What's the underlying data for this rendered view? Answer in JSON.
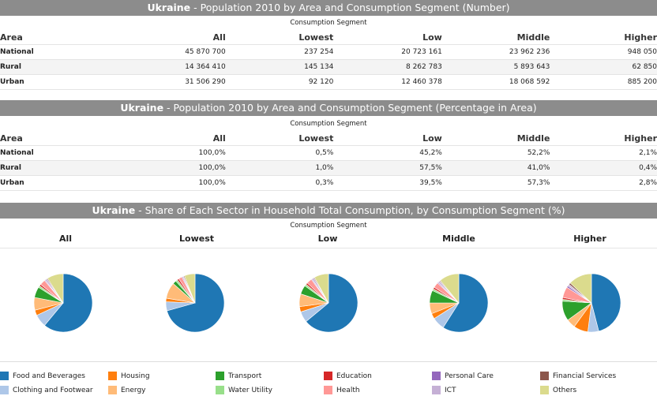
{
  "table1": {
    "country": "Ukraine",
    "title_rest": " - Population 2010 by Area and Consumption Segment (Number)",
    "segment_label": "Consumption Segment",
    "headers": [
      "Area",
      "All",
      "Lowest",
      "Low",
      "Middle",
      "Higher"
    ],
    "rows": [
      [
        "National",
        "45 870 700",
        "237 254",
        "20 723 161",
        "23 962 236",
        "948 050"
      ],
      [
        "Rural",
        "14 364 410",
        "145 134",
        "8 262 783",
        "5 893 643",
        "62 850"
      ],
      [
        "Urban",
        "31 506 290",
        "92 120",
        "12 460 378",
        "18 068 592",
        "885 200"
      ]
    ]
  },
  "table2": {
    "country": "Ukraine",
    "title_rest": " - Population 2010 by Area and Consumption Segment (Percentage in Area)",
    "segment_label": "Consumption Segment",
    "headers": [
      "Area",
      "All",
      "Lowest",
      "Low",
      "Middle",
      "Higher"
    ],
    "rows": [
      [
        "National",
        "100,0%",
        "0,5%",
        "45,2%",
        "52,2%",
        "2,1%"
      ],
      [
        "Rural",
        "100,0%",
        "1,0%",
        "57,5%",
        "41,0%",
        "0,4%"
      ],
      [
        "Urban",
        "100,0%",
        "0,3%",
        "39,5%",
        "57,3%",
        "2,8%"
      ]
    ]
  },
  "pies_section": {
    "country": "Ukraine",
    "title_rest": " - Share of Each Sector in Household Total Consumption, by Consumption Segment (%)",
    "segment_label": "Consumption Segment"
  },
  "chart_data": {
    "type": "pie",
    "title": "Share of Each Sector in Household Total Consumption, by Consumption Segment (%)",
    "sectors": [
      "Food and Beverages",
      "Clothing and Footwear",
      "Housing",
      "Energy",
      "Transport",
      "Water Utility",
      "Education",
      "Health",
      "Personal Care",
      "ICT",
      "Financial Services",
      "Others"
    ],
    "colors": [
      "#1f77b4",
      "#aec7e8",
      "#ff7f0e",
      "#ffbb78",
      "#2ca02c",
      "#98df8a",
      "#d62728",
      "#ff9896",
      "#9467bd",
      "#c5b0d5",
      "#8c564b",
      "#dbdb8d"
    ],
    "series": [
      {
        "name": "All",
        "values": [
          61,
          7,
          3,
          7,
          6,
          1,
          1,
          3,
          0.5,
          1,
          0.5,
          9
        ]
      },
      {
        "name": "Lowest",
        "values": [
          71,
          5,
          2,
          9,
          2,
          1,
          1,
          2,
          0.5,
          0.5,
          0.5,
          6
        ]
      },
      {
        "name": "Low",
        "values": [
          64,
          6,
          3,
          7,
          5,
          1,
          1,
          3,
          0.5,
          1,
          0.5,
          8
        ]
      },
      {
        "name": "Middle",
        "values": [
          59,
          7,
          3,
          6,
          7,
          1,
          1,
          3,
          0.5,
          1,
          0.5,
          11
        ]
      },
      {
        "name": "Higher",
        "values": [
          46,
          6,
          8,
          5,
          11,
          1,
          1,
          6,
          1,
          1,
          1,
          13
        ]
      }
    ]
  }
}
